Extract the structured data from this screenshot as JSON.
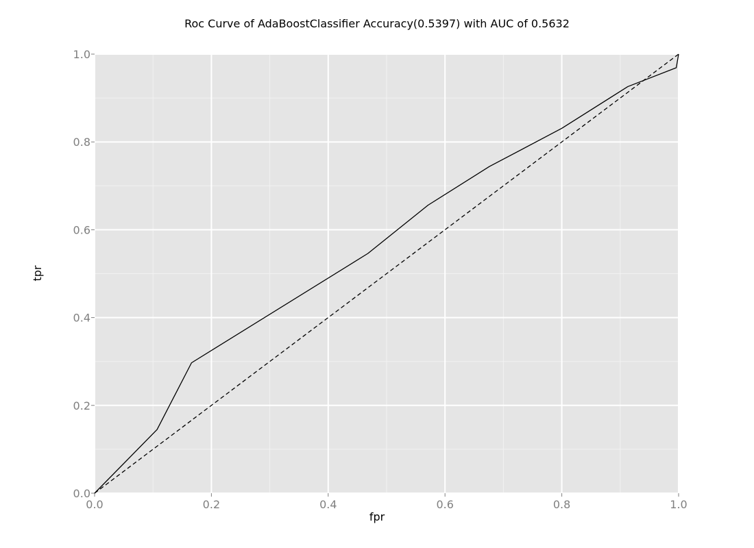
{
  "chart_data": {
    "type": "line",
    "title": "Roc Curve of AdaBoostClassifier Accuracy(0.5397) with AUC of 0.5632",
    "xlabel": "fpr",
    "ylabel": "tpr",
    "xlim": [
      0,
      1
    ],
    "ylim": [
      0,
      1
    ],
    "grid": true,
    "x_ticks": [
      0.0,
      0.2,
      0.4,
      0.6,
      0.8,
      1.0
    ],
    "y_ticks": [
      0.0,
      0.2,
      0.4,
      0.6,
      0.8,
      1.0
    ],
    "x_tick_labels": [
      "0.0",
      "0.2",
      "0.4",
      "0.6",
      "0.8",
      "1.0"
    ],
    "y_tick_labels": [
      "0.0",
      "0.2",
      "0.4",
      "0.6",
      "0.8",
      "1.0"
    ],
    "series": [
      {
        "style": "solid",
        "x": [
          0.0,
          0.107,
          0.166,
          0.468,
          0.571,
          0.676,
          0.8,
          0.913,
          0.996,
          1.0
        ],
        "y": [
          0.0,
          0.145,
          0.297,
          0.546,
          0.656,
          0.744,
          0.831,
          0.926,
          0.969,
          1.0
        ]
      },
      {
        "style": "dashed",
        "x": [
          0.0,
          1.0
        ],
        "y": [
          0.0,
          1.0
        ]
      }
    ],
    "colors": {
      "panel": "#e5e5e5",
      "major_grid": "#ffffff",
      "minor_grid": "#f2f2f2",
      "line": "#000000",
      "tick_text": "#7f7f7f"
    }
  }
}
